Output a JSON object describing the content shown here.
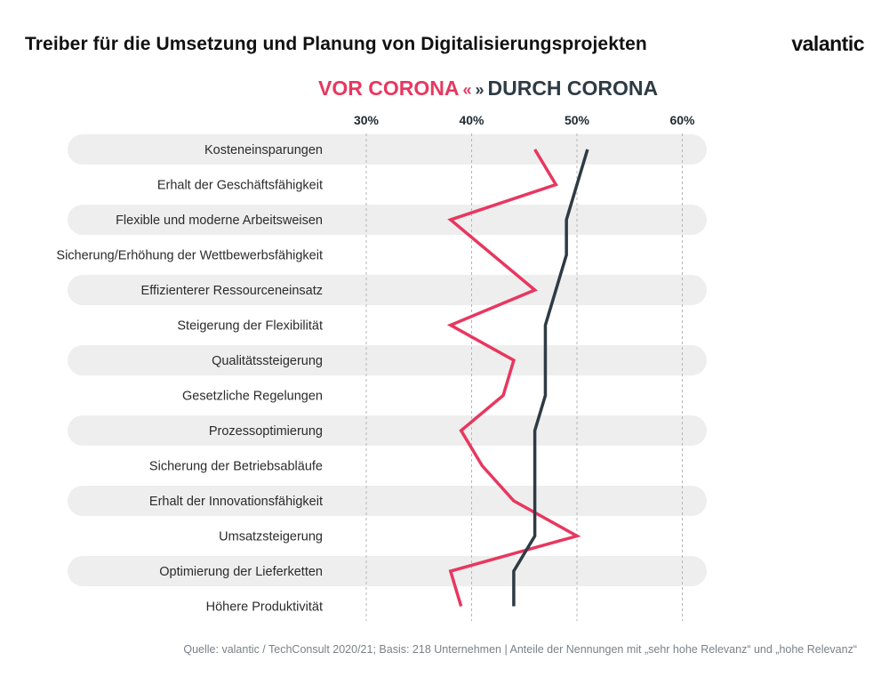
{
  "header": {
    "title": "Treiber für die Umsetzung und Planung von Digitalisierungsprojekten",
    "brand": "valantic"
  },
  "legend": {
    "vor_label": "VOR CORONA",
    "left_arrows": "«",
    "right_arrows": "»",
    "durch_label": "DURCH CORONA"
  },
  "footer": {
    "source": "Quelle: valantic / TechConsult 2020/21; Basis: 218 Unternehmen | Anteile der Nennungen mit „sehr hohe Relevanz“ und „hohe Relevanz“"
  },
  "colors": {
    "vor": "#e8375f",
    "durch": "#2e3b44",
    "band": "#eeeeee",
    "grid": "#b5b5b5"
  },
  "chart_data": {
    "type": "line",
    "orientation": "horizontal-categories",
    "categories": [
      "Kosteneinsparungen",
      "Erhalt der Geschäftsfähigkeit",
      "Flexible und moderne Arbeitsweisen",
      "Sicherung/Erhöhung der Wettbewerbsfähigkeit",
      "Effizienterer Ressourceneinsatz",
      "Steigerung der Flexibilität",
      "Qualitätssteigerung",
      "Gesetzliche Regelungen",
      "Prozessoptimierung",
      "Sicherung der Betriebsabläufe",
      "Erhalt der Innovationsfähigkeit",
      "Umsatzsteigerung",
      "Optimierung der Lieferketten",
      "Höhere Produktivität"
    ],
    "series": [
      {
        "name": "VOR CORONA",
        "color": "#e8375f",
        "values": [
          46,
          48,
          38,
          null,
          46,
          38,
          44,
          43,
          39,
          41,
          44,
          50,
          38,
          39
        ]
      },
      {
        "name": "DURCH CORONA",
        "color": "#2e3b44",
        "values": [
          51,
          50,
          49,
          49,
          48,
          47,
          47,
          47,
          46,
          46,
          46,
          46,
          44,
          44
        ]
      }
    ],
    "value_axis": {
      "ticks": [
        30,
        40,
        50,
        60
      ],
      "tick_labels": [
        "30%",
        "40%",
        "50%",
        "60%"
      ],
      "range": [
        25,
        65
      ]
    },
    "grid": true
  }
}
